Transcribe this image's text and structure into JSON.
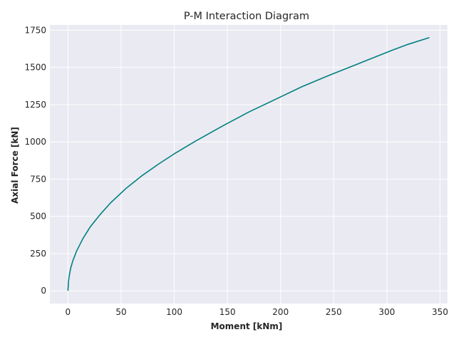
{
  "chart_data": {
    "type": "line",
    "title": "P-M Interaction Diagram",
    "xlabel": "Moment [kNm]",
    "ylabel": "Axial Force [kN]",
    "xlim": [
      -17,
      357
    ],
    "ylim": [
      -85,
      1785
    ],
    "xticks": [
      0,
      50,
      100,
      150,
      200,
      250,
      300,
      350
    ],
    "yticks": [
      0,
      250,
      500,
      750,
      1000,
      1250,
      1500,
      1750
    ],
    "grid": true,
    "series": [
      {
        "color": "#008080",
        "x": [
          0,
          0.5,
          1.2,
          2.5,
          4.5,
          8,
          14,
          21,
          30,
          40,
          55,
          70,
          85,
          100,
          120,
          145,
          170,
          195,
          220,
          245,
          275,
          305,
          320,
          340
        ],
        "y": [
          0,
          60,
          100,
          150,
          200,
          265,
          350,
          430,
          510,
          590,
          690,
          775,
          850,
          920,
          1005,
          1105,
          1200,
          1285,
          1370,
          1445,
          1530,
          1615,
          1655,
          1700
        ]
      }
    ]
  }
}
